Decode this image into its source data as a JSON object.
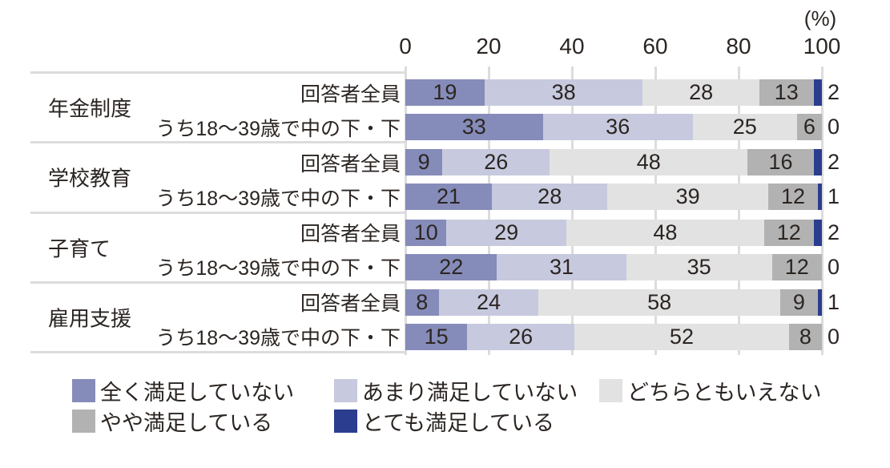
{
  "chart_data": {
    "type": "bar",
    "orientation": "horizontal",
    "stacked": true,
    "unit_label": "(%)",
    "x_ticks": [
      0,
      20,
      40,
      60,
      80,
      100
    ],
    "xlim": [
      0,
      100
    ],
    "grid": true,
    "legend_position": "bottom",
    "legend": [
      {
        "label": "全く満足していない",
        "color": "#868cb9"
      },
      {
        "label": "あまり満足していない",
        "color": "#c7cade"
      },
      {
        "label": "どちらともいえない",
        "color": "#e2e2e2"
      },
      {
        "label": "やや満足している",
        "color": "#b2b2b2"
      },
      {
        "label": "とても満足している",
        "color": "#2b3d8e"
      }
    ],
    "groups": [
      {
        "label": "年金制度",
        "rows": [
          {
            "label": "回答者全員",
            "values": [
              19,
              38,
              28,
              13,
              2
            ]
          },
          {
            "label": "うち18〜39歳で中の下・下",
            "values": [
              33,
              36,
              25,
              6,
              0
            ]
          }
        ]
      },
      {
        "label": "学校教育",
        "rows": [
          {
            "label": "回答者全員",
            "values": [
              9,
              26,
              48,
              16,
              2
            ]
          },
          {
            "label": "うち18〜39歳で中の下・下",
            "values": [
              21,
              28,
              39,
              12,
              1
            ]
          }
        ]
      },
      {
        "label": "子育て",
        "rows": [
          {
            "label": "回答者全員",
            "values": [
              10,
              29,
              48,
              12,
              2
            ]
          },
          {
            "label": "うち18〜39歳で中の下・下",
            "values": [
              22,
              31,
              35,
              12,
              0
            ]
          }
        ]
      },
      {
        "label": "雇用支援",
        "rows": [
          {
            "label": "回答者全員",
            "values": [
              8,
              24,
              58,
              9,
              1
            ]
          },
          {
            "label": "うち18〜39歳で中の下・下",
            "values": [
              15,
              26,
              52,
              8,
              0
            ]
          }
        ]
      }
    ]
  },
  "colors": {
    "text": "#2b2522",
    "grid": "#dcdcdc",
    "background": "#ffffff"
  }
}
